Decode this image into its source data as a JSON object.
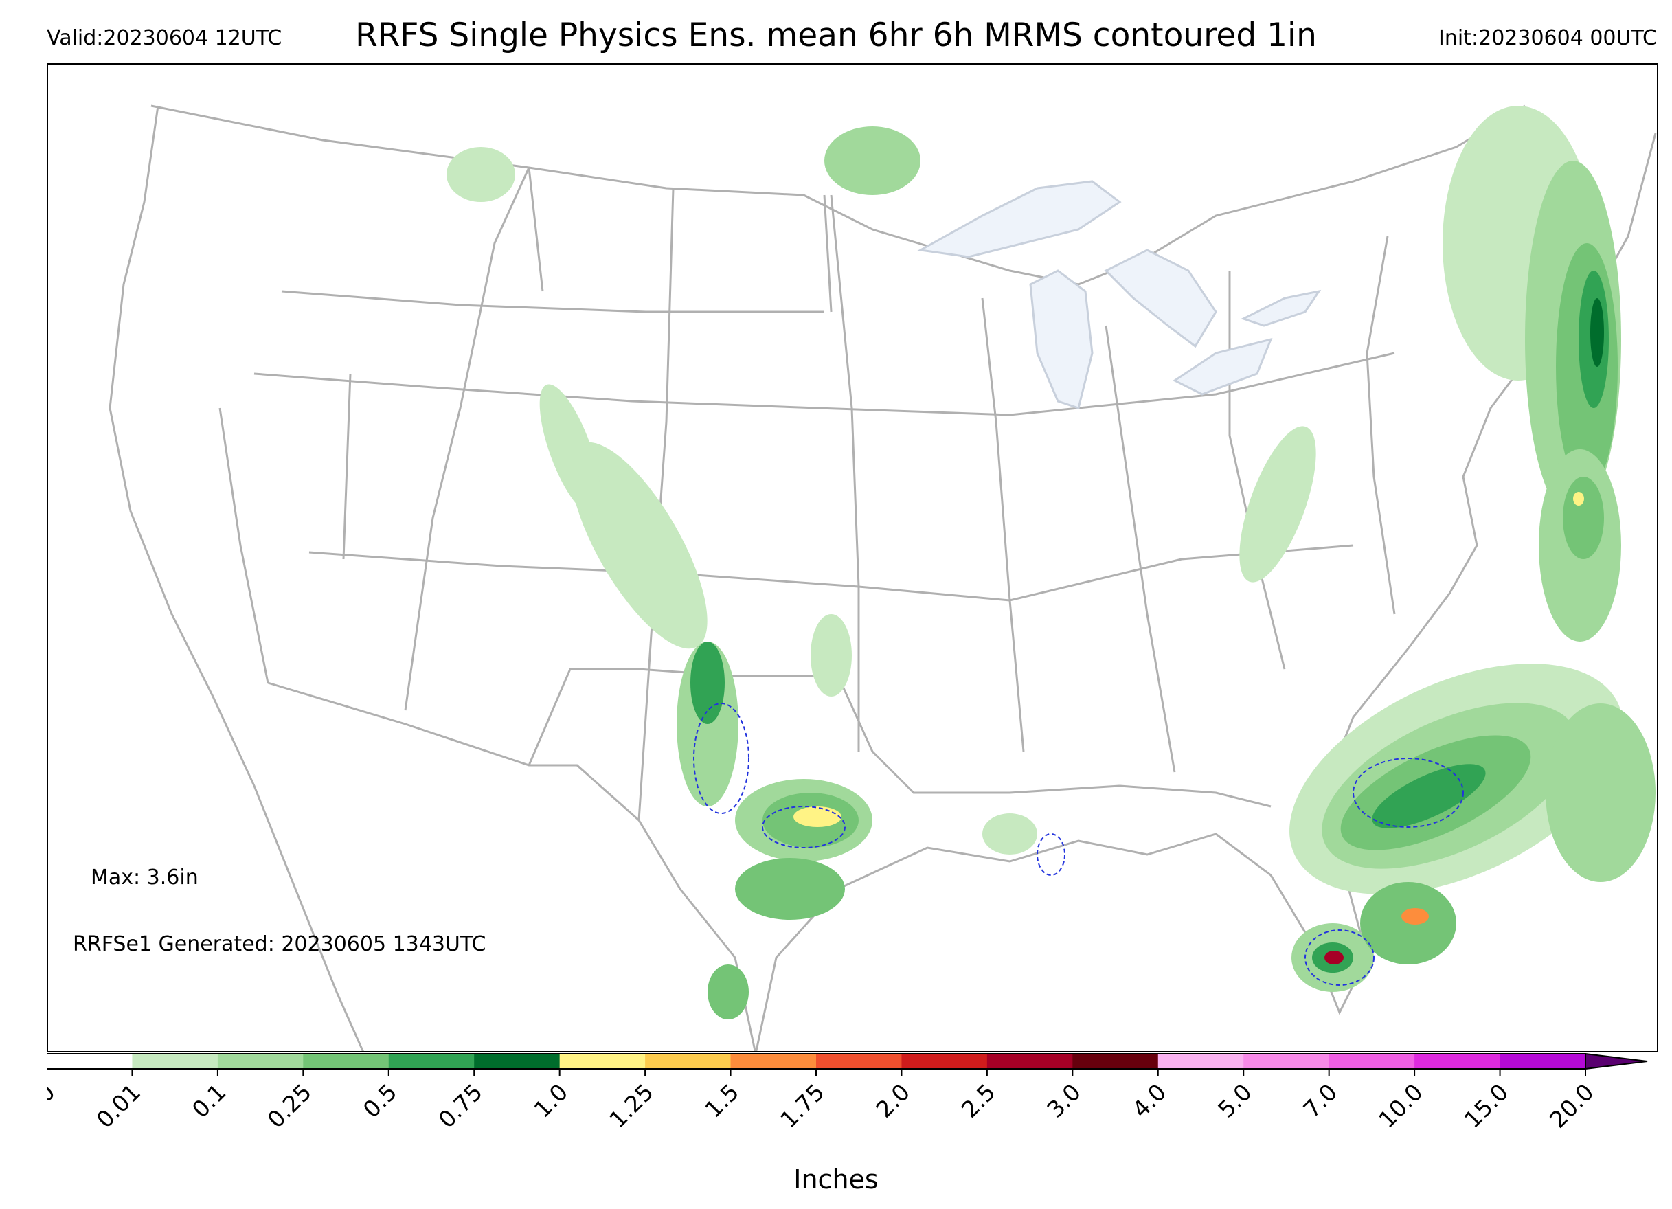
{
  "header": {
    "valid": "Valid:20230604 12UTC",
    "title": "RRFS Single Physics Ens. mean 6hr 6h MRMS contoured 1in",
    "init": "Init:20230604 00UTC"
  },
  "annotations": {
    "max": "Max: 3.6in",
    "generated": "RRFSe1 Generated: 20230605 1343UTC"
  },
  "colorbar": {
    "label": "Inches",
    "ticks": [
      "0.0",
      "0.01",
      "0.1",
      "0.25",
      "0.5",
      "0.75",
      "1.0",
      "1.25",
      "1.5",
      "1.75",
      "2.0",
      "2.5",
      "3.0",
      "4.0",
      "5.0",
      "7.0",
      "10.0",
      "15.0",
      "20.0"
    ],
    "colors": [
      "#ffffff",
      "#c7e9c0",
      "#a1d99b",
      "#74c476",
      "#31a354",
      "#006d2c",
      "#fff385",
      "#fdcc4e",
      "#fd8d3c",
      "#f0502e",
      "#d01c1c",
      "#a60026",
      "#67000d",
      "#f9b2f0",
      "#f78ae8",
      "#ef5fe3",
      "#dd2ade",
      "#b50ad6",
      "#8d04c9"
    ],
    "extend_color": "#5a0070"
  },
  "map_colors": {
    "lakes": "#eef3fa",
    "lake_edge": "#c8d0dc",
    "boundaries": "#b0b0b0",
    "mrms_contour": "#2233dd"
  }
}
